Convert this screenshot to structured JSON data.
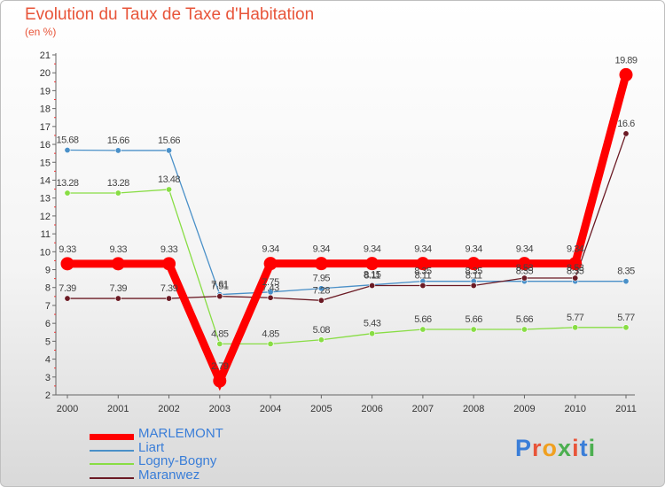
{
  "title": "Evolution du Taux de Taxe d'Habitation",
  "unit_label": "(en %)",
  "logo_text": "Proxiti",
  "logo_colors": [
    "#3a7ed8",
    "#e8553a",
    "#f0a020",
    "#4caf50",
    "#e8553a",
    "#3a7ed8",
    "#4caf50"
  ],
  "chart_data": {
    "type": "line",
    "categories": [
      "2000",
      "2001",
      "2002",
      "2003",
      "2004",
      "2005",
      "2006",
      "2007",
      "2008",
      "2009",
      "2010",
      "2011"
    ],
    "ylim": [
      2,
      21
    ],
    "yticks": [
      2,
      3,
      4,
      5,
      6,
      7,
      8,
      9,
      10,
      11,
      12,
      13,
      14,
      15,
      16,
      17,
      18,
      19,
      20,
      21
    ],
    "grid": false,
    "legend_position": "bottom-left",
    "series": [
      {
        "name": "MARLEMONT",
        "color": "#ff0000",
        "values": [
          9.33,
          9.33,
          9.33,
          2.79,
          9.34,
          9.34,
          9.34,
          9.34,
          9.34,
          9.34,
          9.34,
          19.89
        ],
        "labels": [
          "9.33",
          "9.33",
          "9.33",
          "2.79",
          "9.34",
          "9.34",
          "9.34",
          "9.34",
          "9.34",
          "9.34",
          "9.34",
          "19.89"
        ]
      },
      {
        "name": "Liart",
        "color": "#4a90c8",
        "values": [
          15.68,
          15.66,
          15.66,
          7.61,
          7.75,
          7.95,
          8.15,
          8.35,
          8.35,
          8.35,
          8.35,
          8.35
        ],
        "labels": [
          "15.68",
          "15.66",
          "15.66",
          "7.61",
          "7.75",
          "7.95",
          "8.15",
          "8.35",
          "8.35",
          "8.35",
          "8.35",
          "8.35"
        ]
      },
      {
        "name": "Logny-Bogny",
        "color": "#88dd44",
        "values": [
          13.28,
          13.28,
          13.48,
          4.85,
          4.85,
          5.08,
          5.43,
          5.66,
          5.66,
          5.66,
          5.77,
          5.77
        ],
        "labels": [
          "13.28",
          "13.28",
          "13.48",
          "4.85",
          "4.85",
          "5.08",
          "5.43",
          "5.66",
          "5.66",
          "5.66",
          "5.77",
          "5.77"
        ]
      },
      {
        "name": "Maranwez",
        "color": "#6b1a24",
        "values": [
          7.39,
          7.39,
          7.39,
          7.51,
          7.43,
          7.28,
          8.11,
          8.11,
          8.11,
          8.53,
          8.53,
          16.6
        ],
        "labels": [
          "7.39",
          "7.39",
          "7.39",
          "7.51",
          "7.43",
          "7.28",
          "8.11",
          "8.11",
          "8.11",
          "8.53",
          "8.53",
          "16.6"
        ]
      }
    ]
  }
}
